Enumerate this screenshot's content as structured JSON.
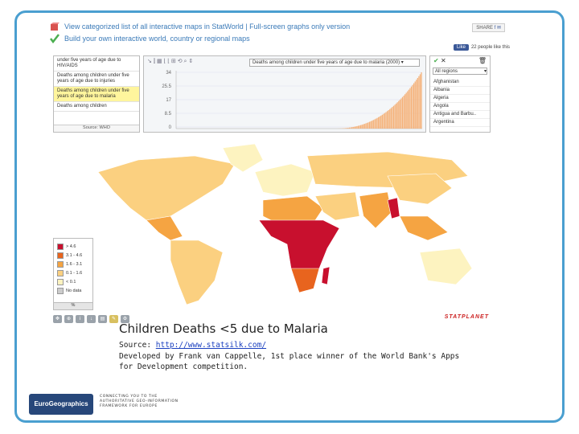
{
  "header": {
    "link1": "View categorized list of all interactive maps in StatWorld | Full-screen graphs only version",
    "link2": "Build your own interactive world, country or regional maps",
    "share_label": "SHARE",
    "like_label": "Like",
    "like_text": "22 people like this"
  },
  "indicators": {
    "items": [
      "under five years of age due to HIV/AIDS",
      "Deaths among children under five years of age due to injuries",
      "Deaths among children under five years of age due to malaria",
      "Deaths among children"
    ],
    "selected_index": 2,
    "source": "Source: WHO"
  },
  "graph": {
    "selector": "Deaths among children under five years of age due to malaria (2000)",
    "y_ticks": [
      "34",
      "25.5",
      "17",
      "8.5",
      "0"
    ],
    "ymax": 34,
    "bar_color": "#f5b27a"
  },
  "regions": {
    "dropdown": "All regions",
    "countries": [
      "Afghanistan",
      "Albania",
      "Algeria",
      "Angola",
      "Antigua and Barbu..",
      "Argentina"
    ]
  },
  "legend": {
    "classes": [
      {
        "label": "> 4.6",
        "color": "#c8102e"
      },
      {
        "label": "3.1 - 4.6",
        "color": "#e8641e"
      },
      {
        "label": "1.6 - 3.1",
        "color": "#f5a442"
      },
      {
        "label": "0.1 - 1.6",
        "color": "#fbd080"
      },
      {
        "label": "< 0.1",
        "color": "#fdf3c0"
      },
      {
        "label": "No data",
        "color": "#cccccc"
      }
    ],
    "unit": "%"
  },
  "brand": "STATPLANET",
  "caption": {
    "title": "Children Deaths <5 due to Malaria",
    "source_prefix": "Source: ",
    "source_link": "http://www.statsilk.com/",
    "credit_line1": "Developed by Frank van Cappelle, 1st place winner of the World Bank's Apps",
    "credit_line2": "for Development competition."
  },
  "footer": {
    "logo": "EuroGeographics",
    "tagline1": "CONNECTING YOU TO THE",
    "tagline2": "AUTHORITATIVE GEO-INFORMATION",
    "tagline3": "FRAMEWORK FOR EUROPE"
  }
}
